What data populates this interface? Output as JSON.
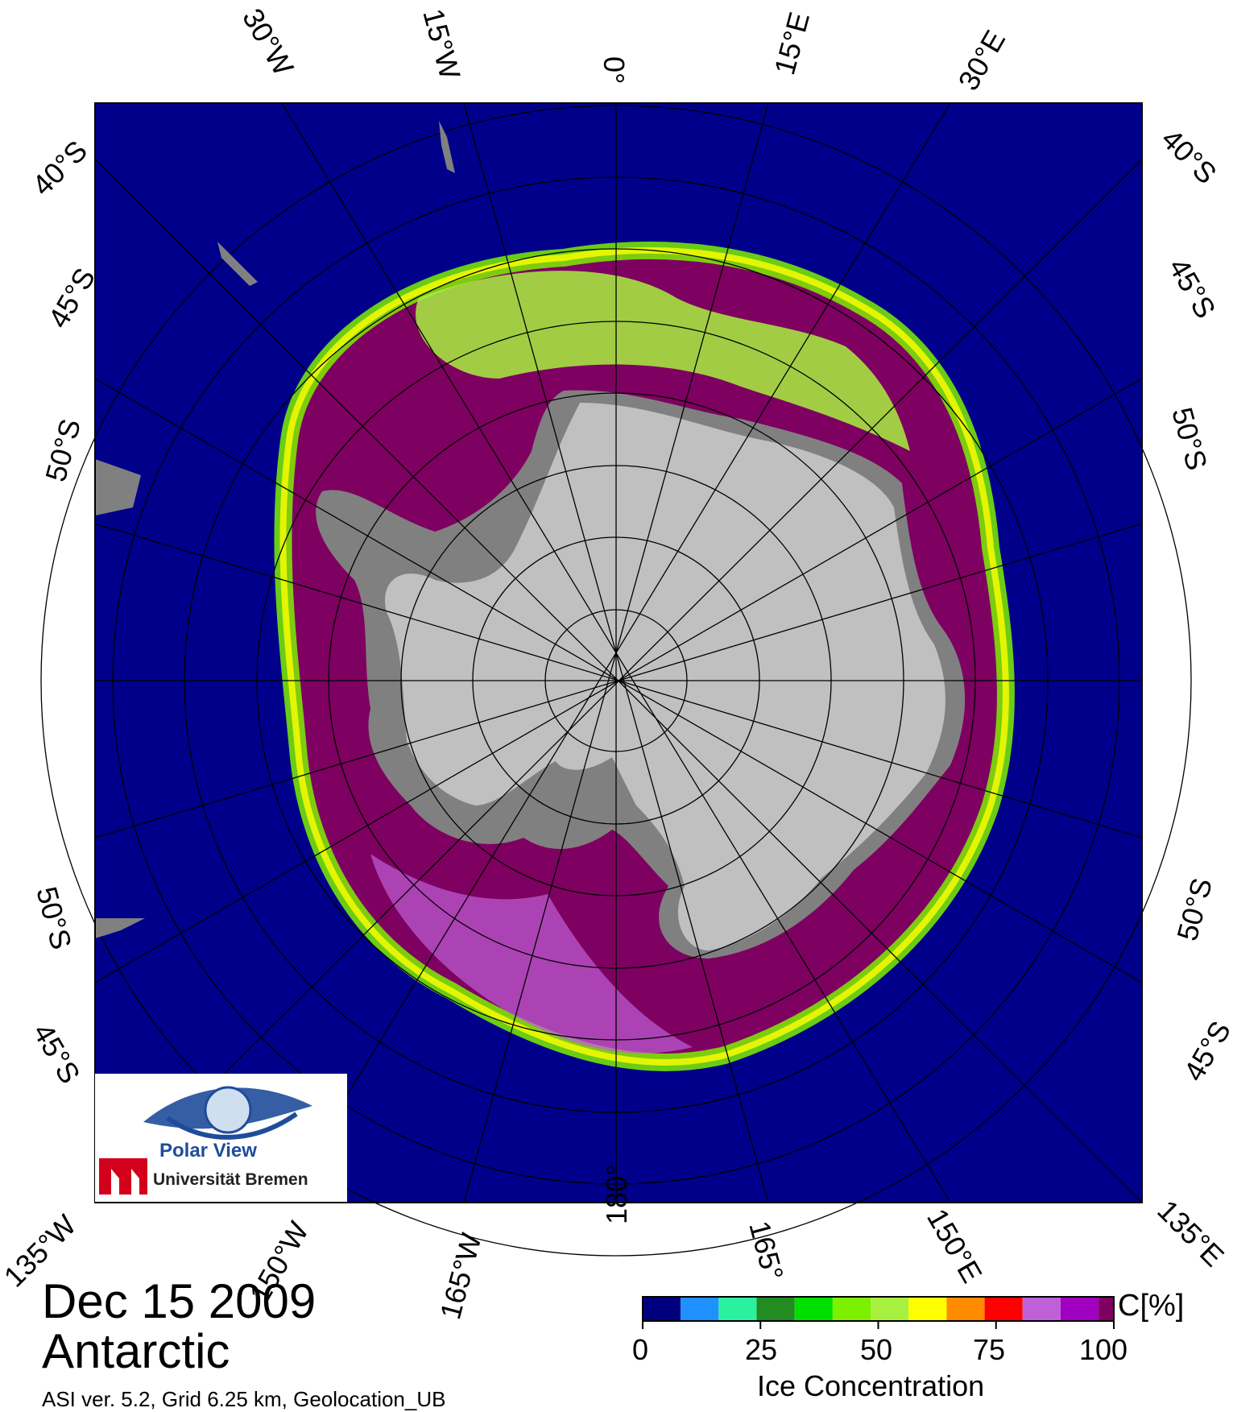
{
  "title": {
    "date": "Dec 15 2009",
    "region": "Antarctic"
  },
  "footer": "ASI ver. 5.2,  Grid 6.25 km, Geolocation_UB",
  "colorbar": {
    "title": "Ice Concentration",
    "unit": "C[%]",
    "ticks": [
      "0",
      "25",
      "50",
      "75",
      "100"
    ],
    "colors": [
      "#00007e",
      "#1e90ff",
      "#2af0a0",
      "#228b22",
      "#00e000",
      "#7cf000",
      "#a8f040",
      "#ffff00",
      "#ff8c00",
      "#ff0000",
      "#c060d8",
      "#a000c0",
      "#7e0060"
    ]
  },
  "map_labels": {
    "top": [
      "30°W",
      "15°W",
      "0°",
      "15°E",
      "30°E"
    ],
    "bottom": [
      "135°W",
      "150°W",
      "165°W",
      "180°",
      "165°",
      "150°E",
      "135°E"
    ],
    "left": [
      "40°S",
      "45°S",
      "50°S",
      "50°S",
      "45°S"
    ],
    "right": [
      "40°S",
      "45°S",
      "50°S",
      "50°S",
      "45°S"
    ]
  },
  "logo": {
    "name": "Polar View",
    "institution": "Universität Bremen"
  },
  "colors": {
    "ocean": "#00008b",
    "land": "#c0c0c0",
    "shelf": "#808080",
    "grid": "#000000"
  }
}
